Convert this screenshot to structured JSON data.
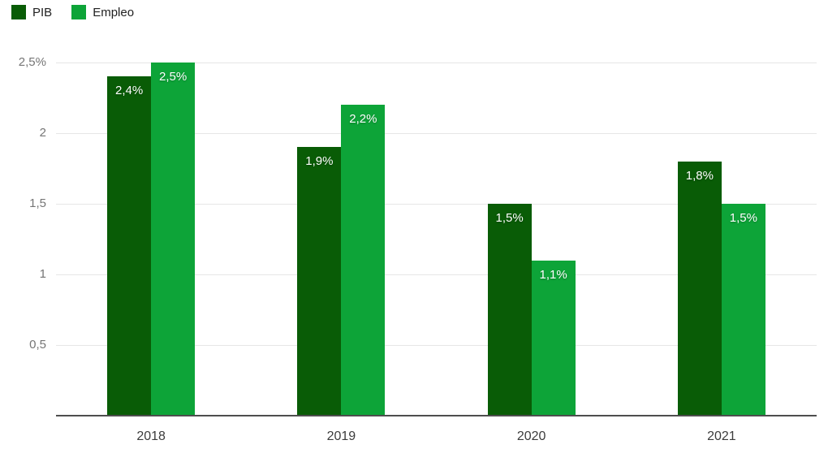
{
  "chart_data": {
    "type": "bar",
    "title": "",
    "xlabel": "",
    "ylabel": "",
    "categories": [
      "2018",
      "2019",
      "2020",
      "2021"
    ],
    "series": [
      {
        "name": "PIB",
        "color": "#095c06",
        "values": [
          2.4,
          1.9,
          1.5,
          1.8
        ],
        "value_labels": [
          "2,4%",
          "1,9%",
          "1,5%",
          "1,8%"
        ]
      },
      {
        "name": "Empleo",
        "color": "#0da438",
        "values": [
          2.5,
          2.2,
          1.1,
          1.5
        ],
        "value_labels": [
          "2,5%",
          "2,2%",
          "1,1%",
          "1,5%"
        ]
      }
    ],
    "y_axis": {
      "range": [
        0,
        2.5
      ],
      "ticks": [
        {
          "value": 2.5,
          "label": "2,5%"
        },
        {
          "value": 2.0,
          "label": "2"
        },
        {
          "value": 1.5,
          "label": "1,5"
        },
        {
          "value": 1.0,
          "label": "1"
        },
        {
          "value": 0.5,
          "label": "0,5"
        }
      ]
    },
    "grid": true,
    "legend_position": "top-left"
  },
  "colors": {
    "series_pib": "#095c06",
    "series_empleo": "#0da438",
    "gridline": "#e6e6e6",
    "baseline": "#4e4e4e",
    "ytick_text": "#757575",
    "xlabel_text": "#3c3c3c",
    "legend_text": "#222222",
    "value_label_text": "#ffffff",
    "background": "#ffffff"
  }
}
